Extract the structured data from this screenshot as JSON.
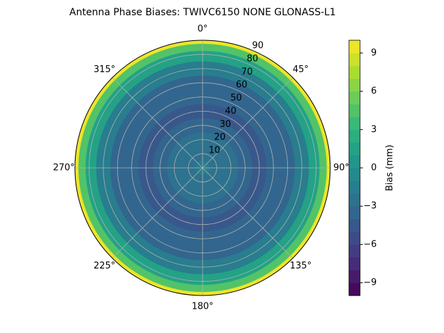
{
  "chart_data": {
    "type": "polar-contour",
    "title": "Antenna Phase Biases: TWIVC6150       NONE GLONASS-L1",
    "zenith": [
      0,
      10,
      20,
      30,
      40,
      50,
      60,
      70,
      80,
      85,
      90
    ],
    "values": [
      -2,
      -2.5,
      -3,
      -3.8,
      -4.2,
      -4,
      -3.2,
      -1.5,
      1.5,
      4.5,
      9
    ],
    "rlim": [
      0,
      90
    ],
    "rticks": [
      10,
      20,
      30,
      40,
      50,
      60,
      70,
      80,
      90
    ],
    "thetaticks": [
      {
        "value": 0,
        "label": "0°"
      },
      {
        "value": 45,
        "label": "45°"
      },
      {
        "value": 90,
        "label": "90°"
      },
      {
        "value": 135,
        "label": "135°"
      },
      {
        "value": 180,
        "label": "180°"
      },
      {
        "value": 225,
        "label": "225°"
      },
      {
        "value": 270,
        "label": "270°"
      },
      {
        "value": 315,
        "label": "315°"
      }
    ],
    "clim": [
      -10,
      10
    ],
    "cticks": [
      {
        "value": -9,
        "label": "−9"
      },
      {
        "value": -6,
        "label": "−6"
      },
      {
        "value": -3,
        "label": "−3"
      },
      0,
      3,
      6,
      9
    ],
    "colorbar_label": "Bias (mm)",
    "colormap": "viridis",
    "grid": true
  }
}
